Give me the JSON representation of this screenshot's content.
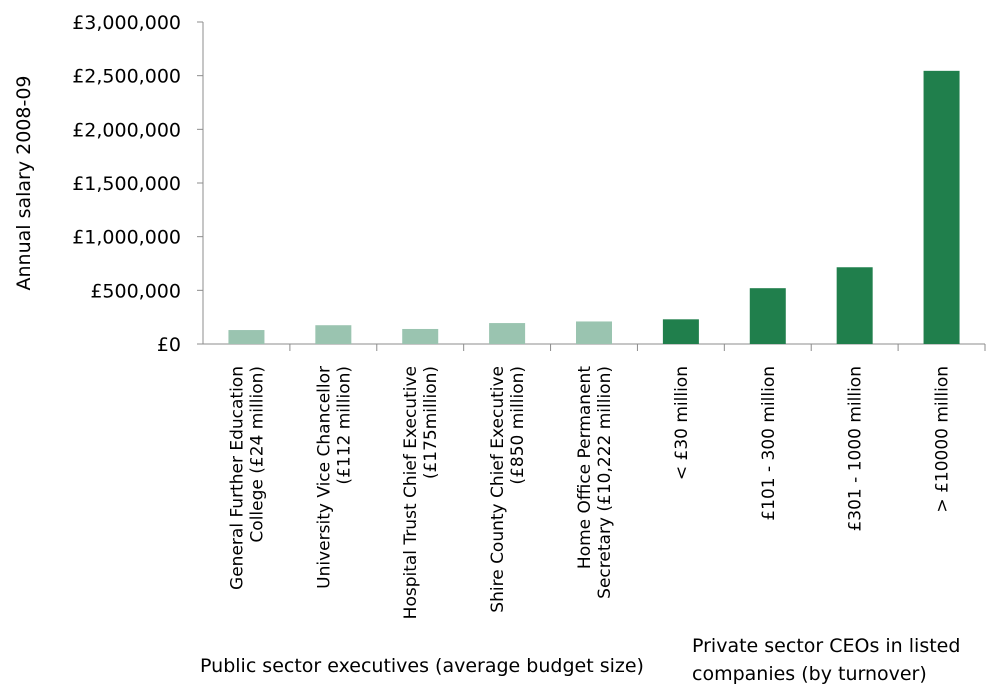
{
  "chart_data": {
    "type": "bar",
    "ylabel": "Annual salary 2008-09",
    "ylim": [
      0,
      3000000
    ],
    "yticks": [
      0,
      500000,
      1000000,
      1500000,
      2000000,
      2500000,
      3000000
    ],
    "ytick_labels": [
      "£0",
      "£500,000",
      "£1,000,000",
      "£1,500,000",
      "£2,000,000",
      "£2,500,000",
      "£3,000,000"
    ],
    "grid": false,
    "categories": [
      [
        "General Further Education",
        "College (£24 million)"
      ],
      [
        "University Vice Chancellor",
        "(£112 million)"
      ],
      [
        "Hospital Trust Chief Executive",
        "(£175million)"
      ],
      [
        "Shire County Chief Executive",
        "(£850 million)"
      ],
      [
        "Home Office Permanent",
        "Secretary (£10,222 million)"
      ],
      [
        "< £30 million"
      ],
      [
        "£101 - 300 million"
      ],
      [
        "£301 - 1000 million"
      ],
      [
        "> £10000 million"
      ]
    ],
    "values": [
      130000,
      175000,
      140000,
      195000,
      210000,
      230000,
      520000,
      715000,
      2545000
    ],
    "groups": [
      {
        "label": "Public sector executives (average budget size)",
        "color": "#9ac4b0",
        "indices": [
          0,
          1,
          2,
          3,
          4
        ]
      },
      {
        "label_lines": [
          "Private sector CEOs in listed",
          "companies  (by turnover)"
        ],
        "color": "#207f4c",
        "indices": [
          5,
          6,
          7,
          8
        ]
      }
    ]
  }
}
